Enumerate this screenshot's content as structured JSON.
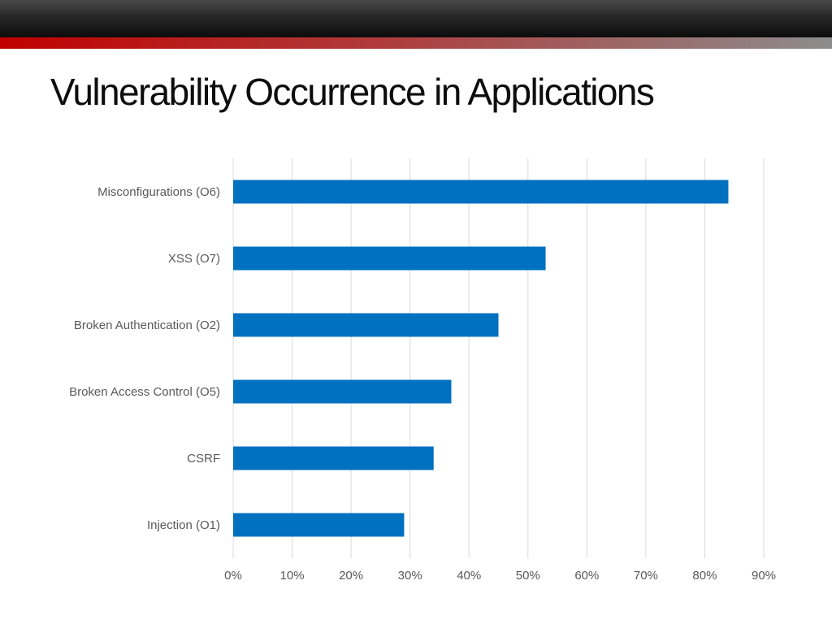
{
  "slide": {
    "title": "Vulnerability Occurrence in Applications"
  },
  "colors": {
    "bar": "#0070c0",
    "grid": "#d9d9d9",
    "label": "#595959",
    "top_band": "#1a1a1a",
    "accent_start": "#c00000",
    "accent_end": "#8c8c8c"
  },
  "chart_data": {
    "type": "bar",
    "orientation": "horizontal",
    "categories": [
      "Misconfigurations (O6)",
      "XSS (O7)",
      "Broken Authentication (O2)",
      "Broken Access Control (O5)",
      "CSRF",
      "Injection (O1)"
    ],
    "values": [
      84,
      53,
      45,
      37,
      34,
      29
    ],
    "value_unit": "%",
    "xlim": [
      0,
      90
    ],
    "xticks": [
      0,
      10,
      20,
      30,
      40,
      50,
      60,
      70,
      80,
      90
    ],
    "xtick_labels": [
      "0%",
      "10%",
      "20%",
      "30%",
      "40%",
      "50%",
      "60%",
      "70%",
      "80%",
      "90%"
    ],
    "grid": true,
    "legend": false
  }
}
